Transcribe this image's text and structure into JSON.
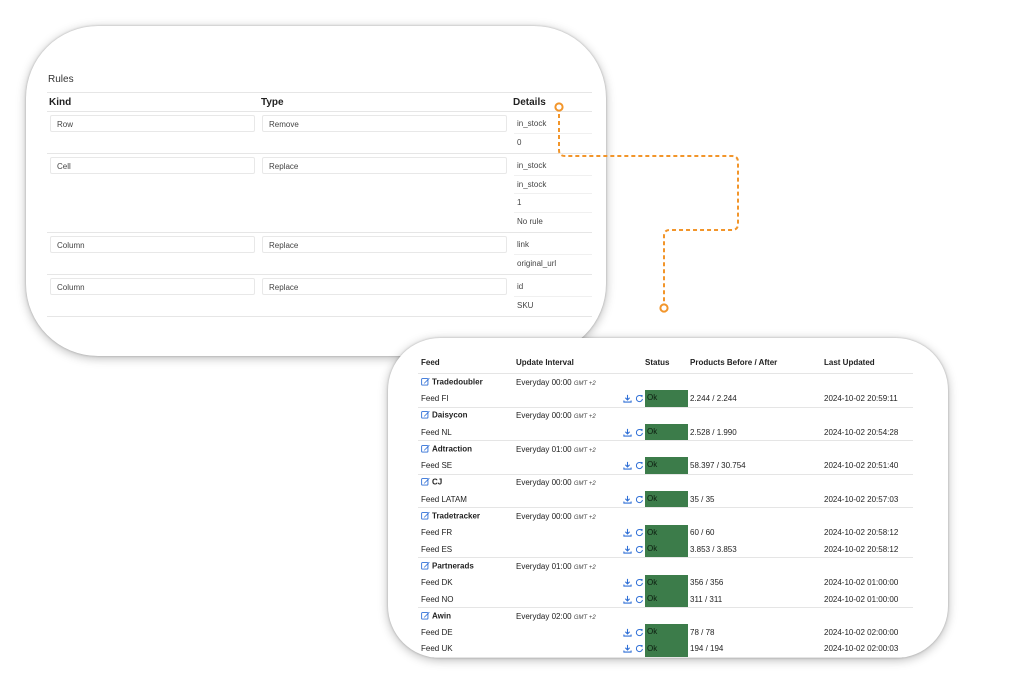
{
  "rules": {
    "title": "Rules",
    "headers": {
      "kind": "Kind",
      "type": "Type",
      "details": "Details"
    },
    "rows": [
      {
        "kind": "Row",
        "type": "Remove",
        "details": [
          "in_stock",
          "0"
        ]
      },
      {
        "kind": "Cell",
        "type": "Replace",
        "details": [
          "in_stock",
          "in_stock",
          "1",
          "No rule"
        ]
      },
      {
        "kind": "Column",
        "type": "Replace",
        "details": [
          "link",
          "original_url"
        ]
      },
      {
        "kind": "Column",
        "type": "Replace",
        "details": [
          "id",
          "SKU"
        ]
      }
    ]
  },
  "feeds": {
    "headers": {
      "feed": "Feed",
      "interval": "Update Interval",
      "status": "Status",
      "products": "Products Before / After",
      "updated": "Last Updated"
    },
    "groups": [
      {
        "name": "Tradedoubler",
        "interval": "Everyday 00:00",
        "tz": "GMT +2",
        "feeds": [
          {
            "name": "Feed FI",
            "status": "Ok",
            "products": "2.244 / 2.244",
            "updated": "2024-10-02 20:59:11"
          }
        ]
      },
      {
        "name": "Daisycon",
        "interval": "Everyday 00:00",
        "tz": "GMT +2",
        "feeds": [
          {
            "name": "Feed NL",
            "status": "Ok",
            "products": "2.528 / 1.990",
            "updated": "2024-10-02 20:54:28"
          }
        ]
      },
      {
        "name": "Adtraction",
        "interval": "Everyday 01:00",
        "tz": "GMT +2",
        "feeds": [
          {
            "name": "Feed SE",
            "status": "Ok",
            "products": "58.397 / 30.754",
            "updated": "2024-10-02 20:51:40"
          }
        ]
      },
      {
        "name": "CJ",
        "interval": "Everyday 00:00",
        "tz": "GMT +2",
        "feeds": [
          {
            "name": "Feed LATAM",
            "status": "Ok",
            "products": "35 / 35",
            "updated": "2024-10-02 20:57:03"
          }
        ]
      },
      {
        "name": "Tradetracker",
        "interval": "Everyday 00:00",
        "tz": "GMT +2",
        "feeds": [
          {
            "name": "Feed FR",
            "status": "Ok",
            "products": "60 / 60",
            "updated": "2024-10-02 20:58:12"
          },
          {
            "name": "Feed ES",
            "status": "Ok",
            "products": "3.853 / 3.853",
            "updated": "2024-10-02 20:58:12"
          }
        ]
      },
      {
        "name": "Partnerads",
        "interval": "Everyday 01:00",
        "tz": "GMT +2",
        "feeds": [
          {
            "name": "Feed DK",
            "status": "Ok",
            "products": "356 / 356",
            "updated": "2024-10-02 01:00:00"
          },
          {
            "name": "Feed NO",
            "status": "Ok",
            "products": "311 / 311",
            "updated": "2024-10-02 01:00:00"
          }
        ]
      },
      {
        "name": "Awin",
        "interval": "Everyday 02:00",
        "tz": "GMT +2",
        "feeds": [
          {
            "name": "Feed DE",
            "status": "Ok",
            "products": "78 / 78",
            "updated": "2024-10-02 02:00:00"
          },
          {
            "name": "Feed UK",
            "status": "Ok",
            "products": "194 / 194",
            "updated": "2024-10-02 02:00:03"
          }
        ]
      }
    ]
  },
  "colors": {
    "status_ok": "#3c7c4a",
    "icon_blue": "#2f6fd6",
    "connector": "#f2952a"
  },
  "icons": {
    "edit": "edit-icon",
    "download": "download-icon",
    "refresh": "refresh-icon"
  }
}
